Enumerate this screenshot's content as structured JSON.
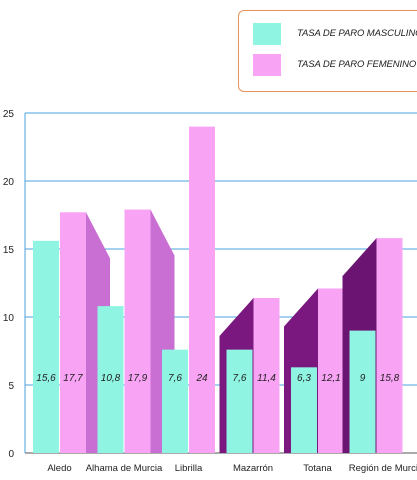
{
  "chart_data": {
    "type": "bar",
    "title": "",
    "xlabel": "",
    "ylabel": "",
    "ylim": [
      0,
      25
    ],
    "yticks": [
      0,
      5,
      10,
      15,
      20,
      25
    ],
    "grid": true,
    "legend_position": "top-right",
    "categories": [
      "Aledo",
      "Alhama de Murcia",
      "Librilla",
      "Mazarrón",
      "Totana",
      "Región de Murcia"
    ],
    "series": [
      {
        "name": "TASA DE PARO MASCULINO",
        "color": "#8ff5e2",
        "values": [
          15.6,
          10.8,
          7.6,
          7.6,
          6.3,
          9
        ],
        "labels": [
          "15,6",
          "10,8",
          "7,6",
          "7,6",
          "6,3",
          "9"
        ]
      },
      {
        "name": "TASA DE PARO FEMENINO",
        "color": "#f9a3f5",
        "values": [
          17.7,
          17.9,
          24,
          11.4,
          12.1,
          15.8
        ],
        "labels": [
          "17,7",
          "17,9",
          "24",
          "11,4",
          "12,1",
          "15,8"
        ]
      }
    ]
  }
}
